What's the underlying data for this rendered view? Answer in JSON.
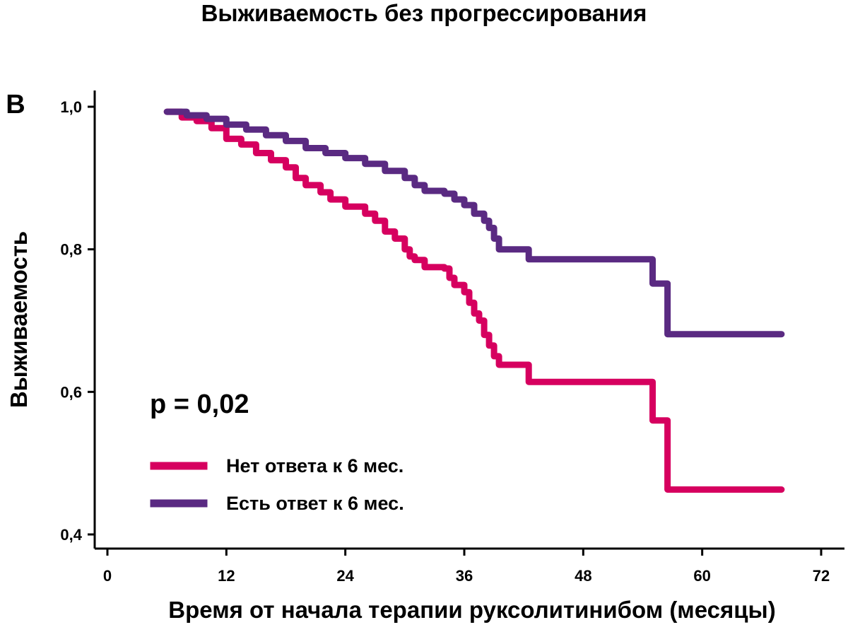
{
  "chart_data": {
    "type": "line",
    "step": true,
    "title": "Выживаемость без прогрессирования",
    "panel_label": "B",
    "annotation": "p = 0,02",
    "xlabel": "Время от начала терапии руксолитинибом (месяцы)",
    "ylabel": "Выживаемость",
    "xlim": [
      0,
      72
    ],
    "ylim": [
      0.4,
      1.0
    ],
    "x_ticks": [
      0,
      12,
      24,
      36,
      48,
      60,
      72
    ],
    "x_tick_labels": [
      "0",
      "12",
      "24",
      "36",
      "48",
      "60",
      "72"
    ],
    "y_ticks": [
      0.4,
      0.6,
      0.8,
      1.0
    ],
    "y_tick_labels": [
      "0,4",
      "0,6",
      "0,8",
      "1,0"
    ],
    "grid": false,
    "legend_position": "bottom-left",
    "series": [
      {
        "name": "Нет ответа к 6 мес.",
        "color": "#d6005f",
        "points": [
          [
            6,
            0.993
          ],
          [
            7.5,
            0.985
          ],
          [
            9,
            0.98
          ],
          [
            10.5,
            0.97
          ],
          [
            12,
            0.955
          ],
          [
            13.5,
            0.947
          ],
          [
            15,
            0.935
          ],
          [
            16.5,
            0.925
          ],
          [
            18,
            0.915
          ],
          [
            19,
            0.9
          ],
          [
            20,
            0.89
          ],
          [
            21.5,
            0.88
          ],
          [
            22.5,
            0.87
          ],
          [
            24,
            0.86
          ],
          [
            26,
            0.85
          ],
          [
            27,
            0.84
          ],
          [
            28,
            0.825
          ],
          [
            29,
            0.815
          ],
          [
            30,
            0.8
          ],
          [
            30.5,
            0.79
          ],
          [
            31,
            0.785
          ],
          [
            32,
            0.775
          ],
          [
            34,
            0.773
          ],
          [
            34.5,
            0.76
          ],
          [
            35,
            0.75
          ],
          [
            36,
            0.74
          ],
          [
            36.5,
            0.725
          ],
          [
            37,
            0.71
          ],
          [
            37.5,
            0.7
          ],
          [
            38,
            0.68
          ],
          [
            38.5,
            0.665
          ],
          [
            39,
            0.65
          ],
          [
            39.5,
            0.638
          ],
          [
            42.5,
            0.614
          ],
          [
            55,
            0.56
          ],
          [
            56.5,
            0.463
          ],
          [
            68,
            0.463
          ]
        ]
      },
      {
        "name": "Есть ответ к 6 мес.",
        "color": "#5a2a82",
        "points": [
          [
            6,
            0.993
          ],
          [
            8,
            0.988
          ],
          [
            10,
            0.983
          ],
          [
            12,
            0.975
          ],
          [
            14,
            0.968
          ],
          [
            16,
            0.96
          ],
          [
            18,
            0.952
          ],
          [
            20,
            0.942
          ],
          [
            22,
            0.935
          ],
          [
            24,
            0.928
          ],
          [
            26,
            0.92
          ],
          [
            28,
            0.91
          ],
          [
            30,
            0.9
          ],
          [
            31,
            0.89
          ],
          [
            32,
            0.882
          ],
          [
            34,
            0.878
          ],
          [
            35,
            0.87
          ],
          [
            36,
            0.862
          ],
          [
            37,
            0.85
          ],
          [
            38,
            0.84
          ],
          [
            38.5,
            0.83
          ],
          [
            39,
            0.815
          ],
          [
            39.5,
            0.8
          ],
          [
            42.5,
            0.786
          ],
          [
            55,
            0.752
          ],
          [
            56.5,
            0.681
          ],
          [
            68,
            0.681
          ]
        ]
      }
    ]
  }
}
